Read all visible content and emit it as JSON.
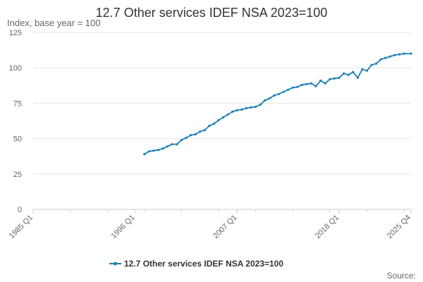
{
  "chart_data": {
    "type": "line",
    "title": "12.7 Other services IDEF NSA 2023=100",
    "ylabel": "Index, base year = 100",
    "xlabel": "",
    "ylim": [
      0,
      125
    ],
    "yticks": [
      0,
      25,
      50,
      75,
      100,
      125
    ],
    "x_range": [
      "1985 Q1",
      "2025 Q4"
    ],
    "xticks": [
      "1985 Q1",
      "1996 Q1",
      "2007 Q1",
      "2018 Q1",
      "2025 Q4"
    ],
    "grid": true,
    "legend_position": "bottom",
    "color": "#1f7fb4",
    "source_label": "Source:",
    "series": [
      {
        "name": "12.7 Other services IDEF NSA 2023=100",
        "x": [
          "1997 Q1",
          "1997 Q3",
          "1998 Q1",
          "1998 Q3",
          "1999 Q1",
          "1999 Q3",
          "2000 Q1",
          "2000 Q3",
          "2001 Q1",
          "2001 Q3",
          "2002 Q1",
          "2002 Q3",
          "2003 Q1",
          "2003 Q3",
          "2004 Q1",
          "2004 Q3",
          "2005 Q1",
          "2005 Q3",
          "2006 Q1",
          "2006 Q3",
          "2007 Q1",
          "2007 Q3",
          "2008 Q1",
          "2008 Q3",
          "2009 Q1",
          "2009 Q3",
          "2010 Q1",
          "2010 Q3",
          "2011 Q1",
          "2011 Q3",
          "2012 Q1",
          "2012 Q3",
          "2013 Q1",
          "2013 Q3",
          "2014 Q1",
          "2014 Q3",
          "2015 Q1",
          "2015 Q3",
          "2016 Q1",
          "2016 Q3",
          "2017 Q1",
          "2017 Q3",
          "2018 Q1",
          "2018 Q3",
          "2019 Q1",
          "2019 Q3",
          "2020 Q1",
          "2020 Q3",
          "2021 Q1",
          "2021 Q3",
          "2022 Q1",
          "2022 Q3",
          "2023 Q1",
          "2023 Q3",
          "2024 Q1",
          "2024 Q3",
          "2025 Q1",
          "2025 Q4"
        ],
        "values": [
          39,
          41,
          41.5,
          42,
          43,
          44.5,
          46,
          46,
          49,
          50.5,
          52.5,
          53,
          55,
          56,
          59,
          60.5,
          63,
          65,
          67,
          69,
          70,
          70.5,
          71.5,
          72,
          72.5,
          74,
          77,
          78.5,
          80.5,
          81.5,
          83,
          84.5,
          86,
          86.5,
          88,
          88.5,
          89,
          87,
          91,
          89,
          92,
          92.5,
          93,
          96,
          95,
          97,
          93,
          99,
          98,
          102,
          103,
          106,
          107,
          108,
          109,
          109.5,
          110,
          110
        ]
      }
    ]
  }
}
